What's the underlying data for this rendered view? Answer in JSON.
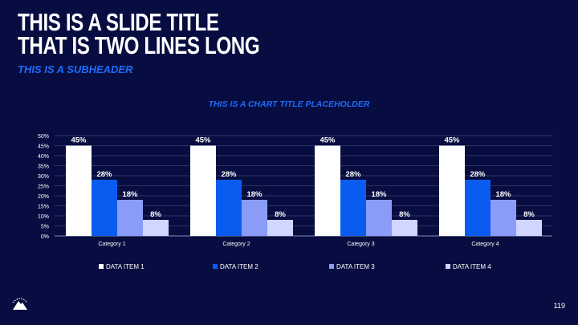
{
  "slide": {
    "title_line1": "THIS IS A SLIDE TITLE",
    "title_line2": "THAT IS TWO LINES LONG",
    "subheader": "THIS IS A SUBHEADER",
    "page_number": "119",
    "logo_icon": "mountain-logo-icon"
  },
  "colors": {
    "background": "#070d40",
    "accent": "#1f6bff",
    "text": "#ffffff"
  },
  "chart_data": {
    "type": "bar",
    "title": "THIS IS A CHART TITLE PLACEHOLDER",
    "categories": [
      "Category 1",
      "Category 2",
      "Category 3",
      "Category 4"
    ],
    "series": [
      {
        "name": "DATA ITEM 1",
        "values": [
          45,
          45,
          45,
          45
        ],
        "labels": [
          "45%",
          "45%",
          "45%",
          "45%"
        ],
        "color": "#ffffff"
      },
      {
        "name": "DATA ITEM 2",
        "values": [
          28,
          28,
          28,
          28
        ],
        "labels": [
          "28%",
          "28%",
          "28%",
          "28%"
        ],
        "color": "#0a5cf0"
      },
      {
        "name": "DATA ITEM 3",
        "values": [
          18,
          18,
          18,
          18
        ],
        "labels": [
          "18%",
          "18%",
          "18%",
          "18%"
        ],
        "color": "#8a9cf7"
      },
      {
        "name": "DATA ITEM 4",
        "values": [
          8,
          8,
          8,
          8
        ],
        "labels": [
          "8%",
          "8%",
          "8%",
          "8%"
        ],
        "color": "#cfd6ff"
      }
    ],
    "y_ticks": [
      "0%",
      "5%",
      "10%",
      "15%",
      "20%",
      "25%",
      "30%",
      "35%",
      "40%",
      "45%",
      "50%"
    ],
    "ylim": [
      0,
      50
    ],
    "grid": true,
    "legend_position": "bottom"
  }
}
